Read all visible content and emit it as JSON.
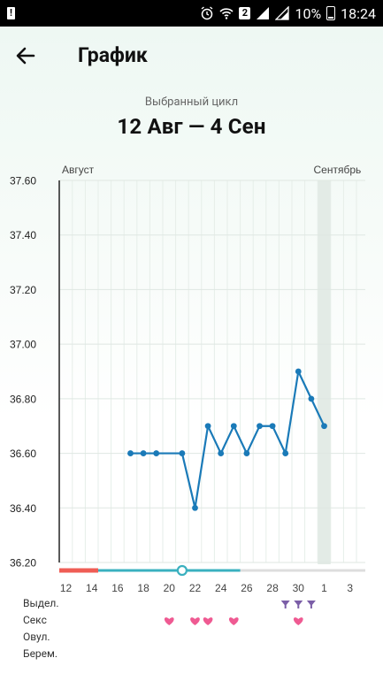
{
  "status": {
    "battery_text": "10%",
    "time": "18:24",
    "sim_badge": "2"
  },
  "toolbar": {
    "title": "График",
    "back_icon": "arrow-left-icon"
  },
  "cycle": {
    "caption": "Выбранный цикл",
    "range": "12 Авг — 4 Сен"
  },
  "chart_data": {
    "type": "line",
    "ylim": [
      36.2,
      37.6
    ],
    "yticks": [
      "37.60",
      "37.40",
      "37.20",
      "37.00",
      "36.80",
      "36.60",
      "36.40",
      "36.20"
    ],
    "month_labels": [
      {
        "text": "Август",
        "day_index": 0
      },
      {
        "text": "Сентябрь",
        "day_index": 20
      }
    ],
    "day_labels": [
      "12",
      "14",
      "16",
      "18",
      "20",
      "22",
      "24",
      "26",
      "28",
      "30",
      "1",
      "3"
    ],
    "day_label_every": 2,
    "days_count": 24,
    "highlight_day_index": 20,
    "series": [
      {
        "color": "#1a7ab8",
        "points": [
          [
            5,
            36.6
          ],
          [
            6,
            36.6
          ],
          [
            7,
            36.6
          ],
          [
            9,
            36.6
          ],
          [
            10,
            36.4
          ],
          [
            11,
            36.7
          ],
          [
            12,
            36.6
          ],
          [
            13,
            36.7
          ],
          [
            14,
            36.6
          ],
          [
            15,
            36.7
          ],
          [
            16,
            36.7
          ],
          [
            17,
            36.6
          ],
          [
            18,
            36.9
          ],
          [
            19,
            36.8
          ],
          [
            20,
            36.7
          ]
        ]
      }
    ],
    "phase_bar": {
      "period_color": "#ef5d55",
      "period_end_index": 2.5,
      "cycle_color": "#3ab0bf",
      "cycle_end_index": 13.5,
      "rest_color": "#dddddd",
      "marker_index": 9
    }
  },
  "rows": [
    {
      "label": "Выдел.",
      "icon": "discharge-icon",
      "color": "#7b5ea7",
      "days": [
        17,
        18,
        19
      ]
    },
    {
      "label": "Секс",
      "icon": "heart-icon",
      "color": "#ef5a92",
      "days": [
        8,
        10,
        11,
        13,
        18
      ]
    },
    {
      "label": "Овул.",
      "icon": "",
      "color": "",
      "days": []
    },
    {
      "label": "Берем.",
      "icon": "",
      "color": "",
      "days": []
    }
  ]
}
